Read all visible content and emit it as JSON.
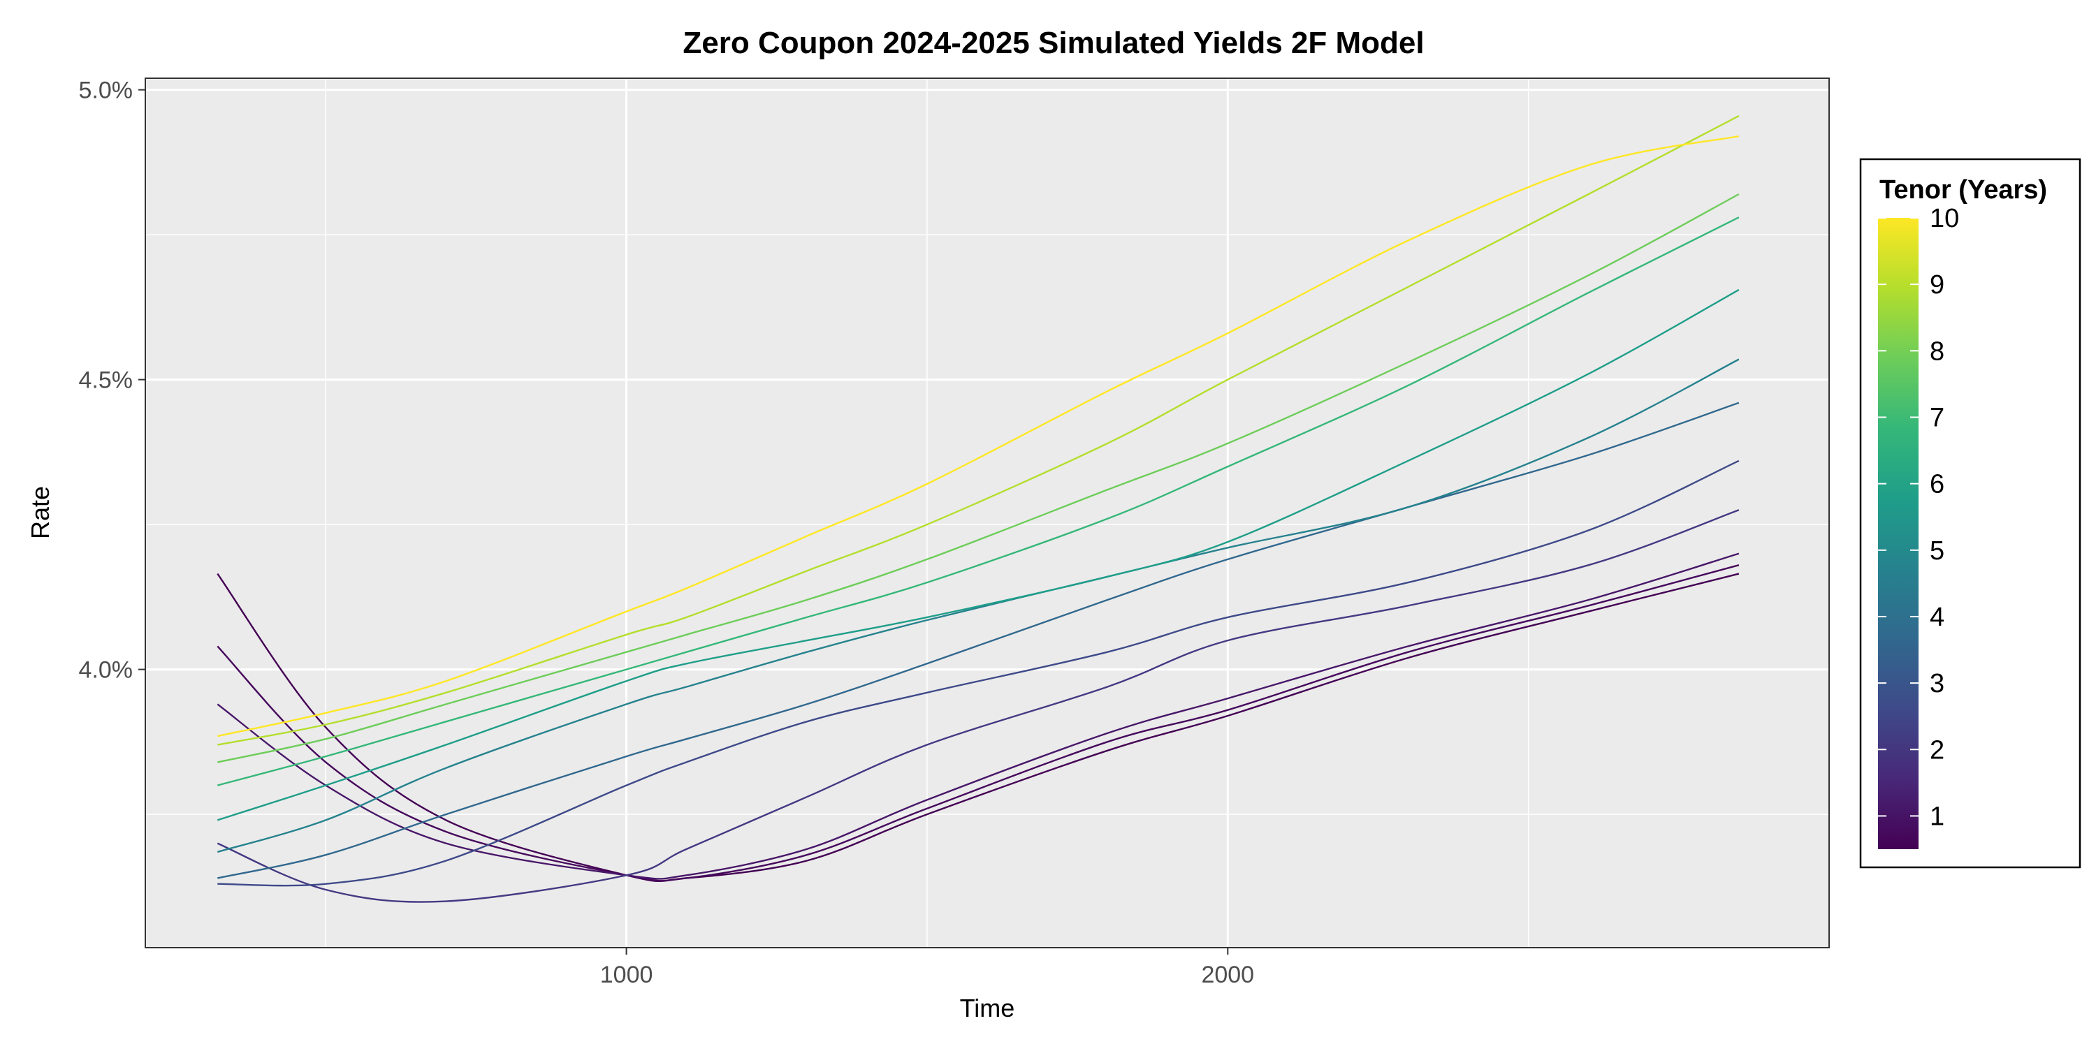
{
  "chart_data": {
    "type": "line",
    "title": "Zero Coupon 2024-2025 Simulated Yields 2F Model",
    "xlabel": "Time",
    "ylabel": "Rate",
    "xlim": [
      200,
      3000
    ],
    "ylim": [
      3.52,
      5.02
    ],
    "x_ticks": [
      1000,
      2000
    ],
    "x_tick_labels": [
      "1000",
      "2000"
    ],
    "x_minor_ticks": [
      500,
      1500,
      2500
    ],
    "y_ticks": [
      4.0,
      4.5,
      5.0
    ],
    "y_tick_labels": [
      "4.0%",
      "4.5%",
      "5.0%"
    ],
    "y_minor_ticks": [
      3.75,
      4.25,
      4.75
    ],
    "grid": true,
    "legend": {
      "title": "Tenor (Years)",
      "placement": "right",
      "type": "colorbar",
      "range": [
        0.5,
        10
      ],
      "ticks": [
        1,
        2,
        3,
        4,
        5,
        6,
        7,
        8,
        9,
        10
      ],
      "tick_labels": [
        "1",
        "2",
        "3",
        "4",
        "5",
        "6",
        "7",
        "8",
        "9",
        "10"
      ],
      "colors": [
        "#440154",
        "#482878",
        "#3E4A89",
        "#31688E",
        "#26828E",
        "#1F9E89",
        "#35B779",
        "#6DCD59",
        "#B4DE2C",
        "#FDE725"
      ]
    },
    "x": [
      320,
      500,
      700,
      1000,
      1100,
      1300,
      1500,
      1800,
      2000,
      2300,
      2600,
      2850
    ],
    "series": [
      {
        "tenor": 0.5,
        "color": "#440154",
        "values": [
          4.165,
          3.9,
          3.74,
          3.645,
          3.64,
          3.67,
          3.75,
          3.86,
          3.92,
          4.02,
          4.1,
          4.165
        ]
      },
      {
        "tenor": 1,
        "color": "#46085c",
        "values": [
          4.04,
          3.84,
          3.72,
          3.645,
          3.64,
          3.68,
          3.76,
          3.875,
          3.93,
          4.03,
          4.11,
          4.18
        ]
      },
      {
        "tenor": 1.5,
        "color": "#481769",
        "values": [
          3.94,
          3.8,
          3.7,
          3.645,
          3.645,
          3.69,
          3.775,
          3.89,
          3.95,
          4.04,
          4.12,
          4.2
        ]
      },
      {
        "tenor": 2,
        "color": "#443983",
        "values": [
          3.7,
          3.62,
          3.6,
          3.645,
          3.69,
          3.78,
          3.87,
          3.97,
          4.05,
          4.11,
          4.18,
          4.275
        ]
      },
      {
        "tenor": 3,
        "color": "#3E4A89",
        "values": [
          3.63,
          3.63,
          3.67,
          3.8,
          3.84,
          3.91,
          3.96,
          4.03,
          4.09,
          4.15,
          4.24,
          4.36
        ]
      },
      {
        "tenor": 4,
        "color": "#31688E",
        "values": [
          3.64,
          3.68,
          3.75,
          3.85,
          3.88,
          3.94,
          4.01,
          4.12,
          4.19,
          4.28,
          4.37,
          4.46
        ]
      },
      {
        "tenor": 5,
        "color": "#26828E",
        "values": [
          3.685,
          3.74,
          3.83,
          3.94,
          3.97,
          4.03,
          4.085,
          4.16,
          4.21,
          4.28,
          4.4,
          4.535
        ]
      },
      {
        "tenor": 6,
        "color": "#1F9E89",
        "values": [
          3.74,
          3.8,
          3.87,
          3.98,
          4.01,
          4.05,
          4.09,
          4.16,
          4.22,
          4.36,
          4.51,
          4.655
        ]
      },
      {
        "tenor": 7,
        "color": "#35B779",
        "values": [
          3.8,
          3.85,
          3.91,
          4.0,
          4.03,
          4.09,
          4.15,
          4.26,
          4.35,
          4.49,
          4.65,
          4.78
        ]
      },
      {
        "tenor": 8,
        "color": "#6DCD59",
        "values": [
          3.84,
          3.88,
          3.94,
          4.03,
          4.06,
          4.12,
          4.19,
          4.31,
          4.39,
          4.53,
          4.68,
          4.82
        ]
      },
      {
        "tenor": 9,
        "color": "#B4DE2C",
        "values": [
          3.87,
          3.905,
          3.96,
          4.06,
          4.09,
          4.17,
          4.25,
          4.39,
          4.5,
          4.66,
          4.82,
          4.955
        ]
      },
      {
        "tenor": 10,
        "color": "#FDE725",
        "values": [
          3.885,
          3.925,
          3.98,
          4.1,
          4.14,
          4.23,
          4.32,
          4.48,
          4.58,
          4.74,
          4.87,
          4.92
        ]
      }
    ]
  }
}
